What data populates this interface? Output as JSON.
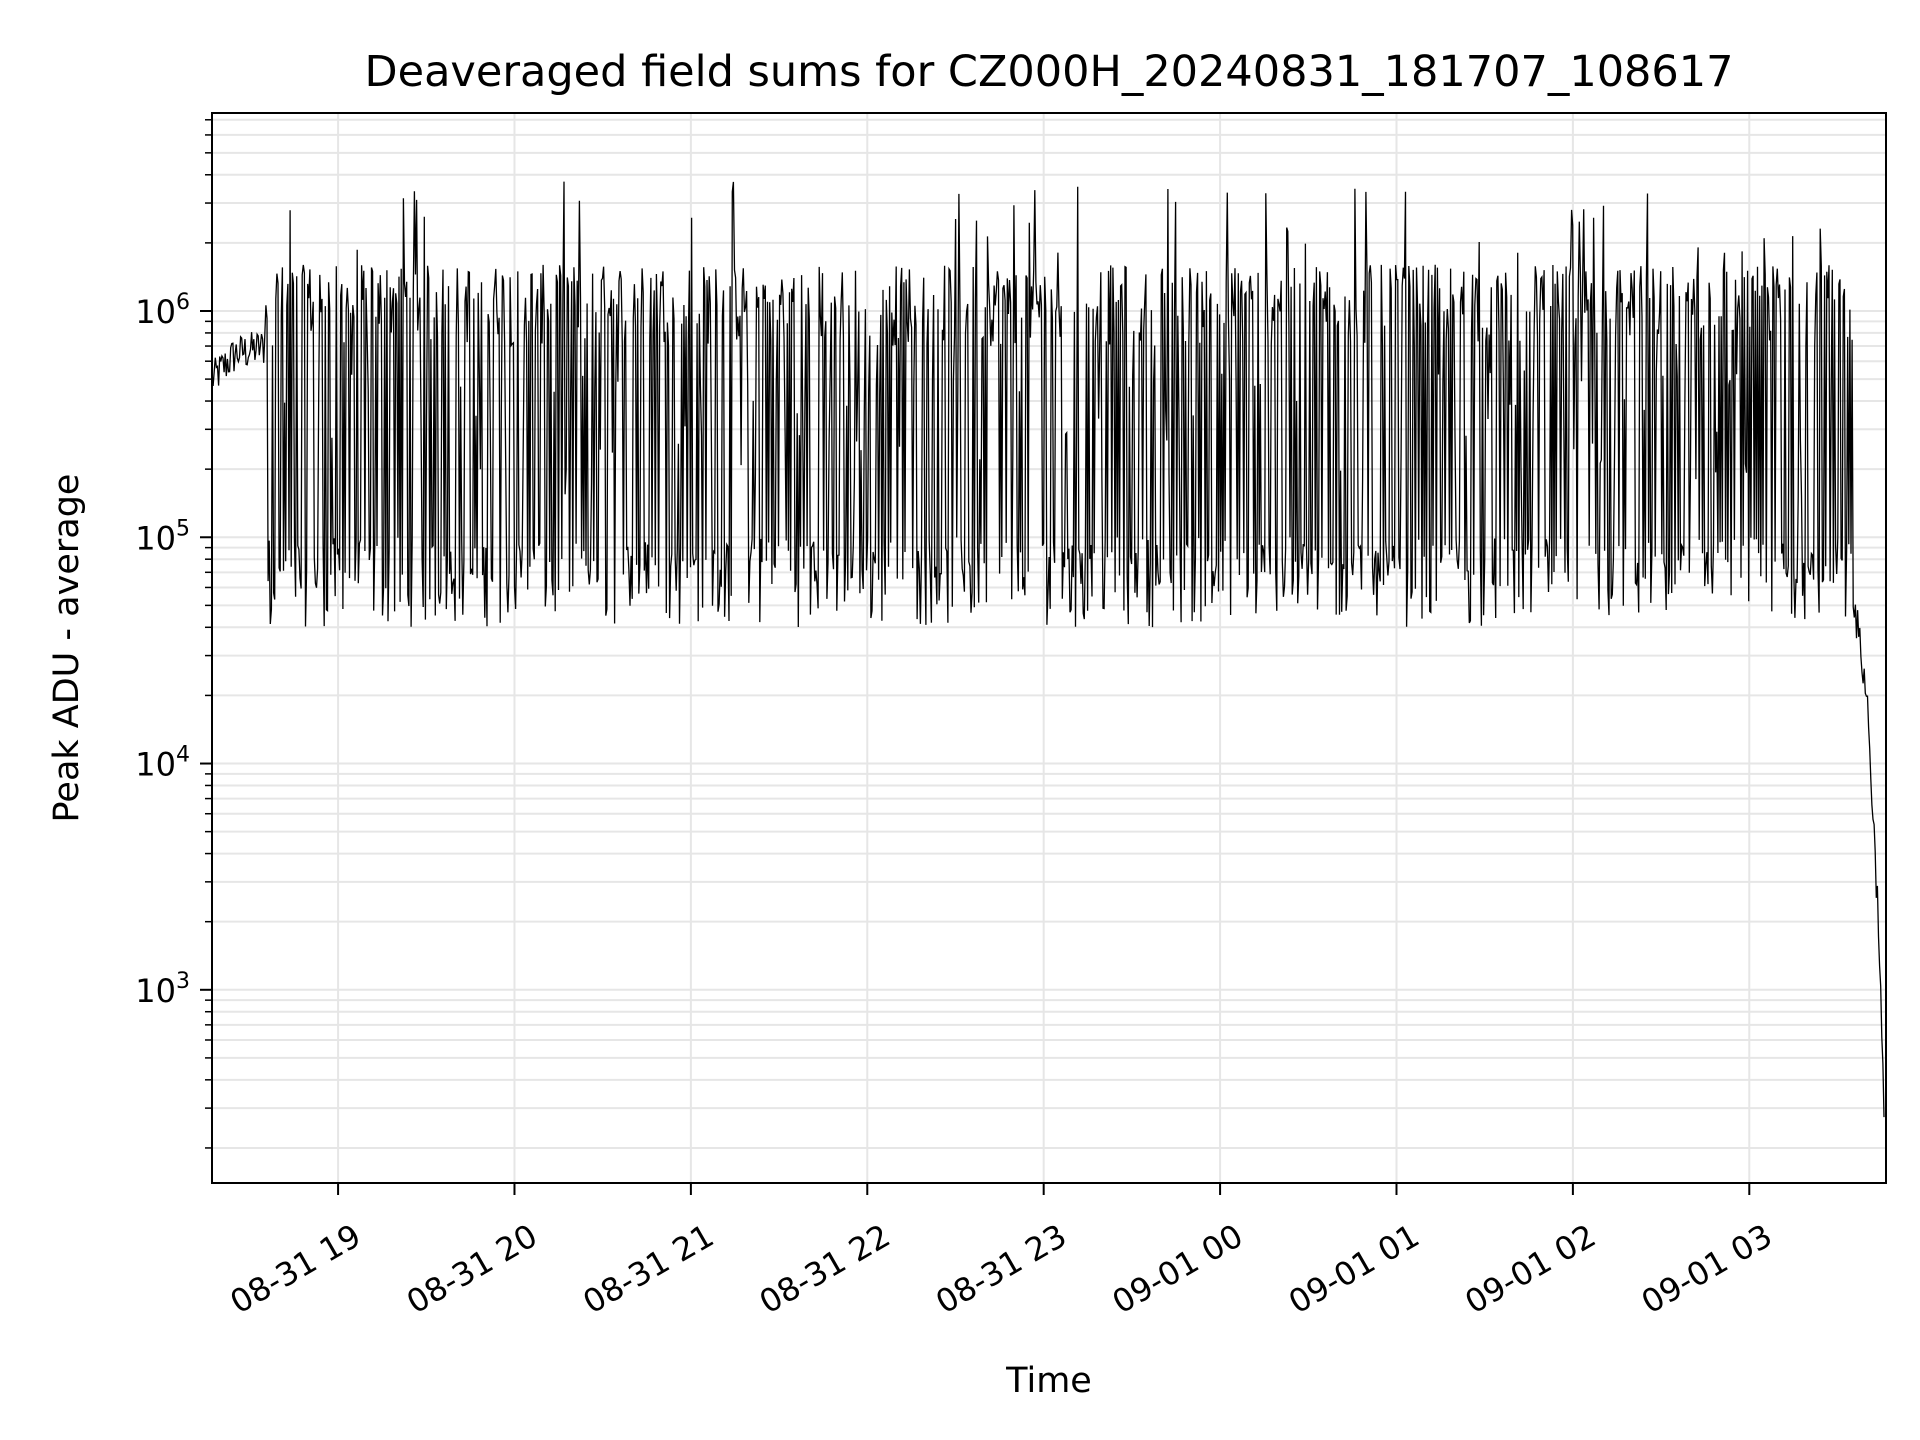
{
  "chart_data": {
    "type": "line",
    "title": "Deaveraged field sums for CZ000H_20240831_181707_108617",
    "xlabel": "Time",
    "ylabel": "Peak ADU - average",
    "yscale": "log",
    "grid": true,
    "line_color": "#000000",
    "grid_color": "#e6e6e6",
    "xlim": [
      "2024-08-31 18:17:07",
      "2024-09-01 03:46:30"
    ],
    "ylim": [
      140,
      7500000
    ],
    "x_ticks": [
      "2024-08-31 19:00",
      "2024-08-31 20:00",
      "2024-08-31 21:00",
      "2024-08-31 22:00",
      "2024-08-31 23:00",
      "2024-09-01 00:00",
      "2024-09-01 01:00",
      "2024-09-01 02:00",
      "2024-09-01 03:00"
    ],
    "x_tick_labels": [
      "08-31 19",
      "08-31 20",
      "08-31 21",
      "08-31 22",
      "08-31 23",
      "09-01 00",
      "09-01 01",
      "09-01 02",
      "09-01 03"
    ],
    "y_ticks": [
      1000,
      10000,
      100000,
      1000000
    ],
    "y_tick_labels": [
      {
        "base": "10",
        "exp": "3"
      },
      {
        "base": "10",
        "exp": "4"
      },
      {
        "base": "10",
        "exp": "5"
      },
      {
        "base": "10",
        "exp": "6"
      }
    ],
    "series": [
      {
        "values_note_free": true,
        "x": [
          "2024-08-31 18:17:07",
          "2024-08-31 18:25",
          "2024-08-31 18:35",
          "2024-08-31 18:45",
          "2024-08-31 18:55",
          "2024-08-31 19:10",
          "2024-08-31 19:30",
          "2024-08-31 19:50",
          "2024-08-31 20:10",
          "2024-08-31 20:40",
          "2024-08-31 21:00",
          "2024-08-31 21:30",
          "2024-08-31 22:00",
          "2024-08-31 22:30",
          "2024-08-31 23:00",
          "2024-08-31 23:30",
          "2024-09-01 00:00",
          "2024-09-01 00:30",
          "2024-09-01 01:00",
          "2024-09-01 01:30",
          "2024-09-01 02:00",
          "2024-09-01 02:30",
          "2024-09-01 02:55",
          "2024-09-01 03:10",
          "2024-09-01 03:20",
          "2024-09-01 03:28",
          "2024-09-01 03:35",
          "2024-09-01 03:40",
          "2024-09-01 03:44",
          "2024-09-01 03:46"
        ],
        "y": [
          500000,
          650000,
          700000,
          900000,
          500000,
          1200000,
          400000,
          150000,
          200000,
          120000,
          300000,
          250000,
          350000,
          300000,
          400000,
          250000,
          300000,
          200000,
          180000,
          150000,
          130000,
          120000,
          200000,
          600000,
          900000,
          400000,
          60000,
          20000,
          2000,
          220
        ]
      }
    ]
  }
}
